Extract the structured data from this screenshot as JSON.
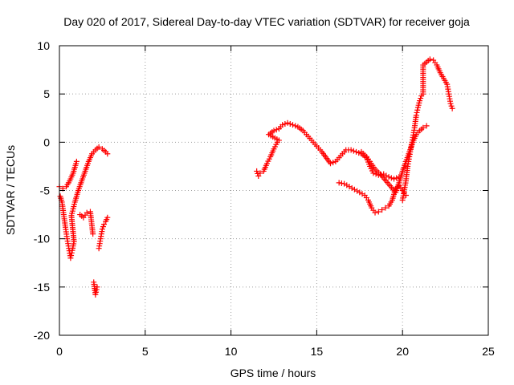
{
  "chart_data": {
    "type": "scatter",
    "title": "Day 020 of 2017, Sidereal Day-to-day VTEC variation (SDTVAR) for receiver goja",
    "xlabel": "GPS time / hours",
    "ylabel": "SDTVAR / TECUs",
    "xlim": [
      0,
      25
    ],
    "ylim": [
      -20,
      10
    ],
    "xticks": [
      0,
      5,
      10,
      15,
      20,
      25
    ],
    "yticks": [
      -20,
      -15,
      -10,
      -5,
      0,
      5,
      10
    ],
    "grid": true,
    "marker": "+",
    "color": "#ff0000",
    "series": [
      {
        "points": [
          [
            0.0,
            -4.6
          ],
          [
            0.2,
            -4.8
          ],
          [
            0.4,
            -4.6
          ],
          [
            0.6,
            -4.0
          ],
          [
            0.8,
            -3.2
          ],
          [
            1.0,
            -2.0
          ],
          [
            0.05,
            -5.6
          ],
          [
            0.15,
            -6.2
          ],
          [
            0.25,
            -7.5
          ],
          [
            0.35,
            -8.8
          ],
          [
            0.45,
            -10.0
          ],
          [
            0.55,
            -11.0
          ],
          [
            0.65,
            -12.0
          ],
          [
            0.75,
            -11.2
          ],
          [
            0.85,
            -10.3
          ],
          [
            0.7,
            -7.6
          ],
          [
            0.9,
            -6.2
          ],
          [
            1.1,
            -5.0
          ],
          [
            1.3,
            -4.0
          ],
          [
            1.5,
            -3.0
          ],
          [
            1.7,
            -2.0
          ],
          [
            1.9,
            -1.2
          ],
          [
            2.1,
            -0.8
          ],
          [
            2.3,
            -0.5
          ],
          [
            2.5,
            -0.7
          ],
          [
            2.7,
            -1.0
          ],
          [
            2.8,
            -1.2
          ],
          [
            1.2,
            -7.5
          ],
          [
            1.4,
            -7.8
          ],
          [
            1.6,
            -7.3
          ],
          [
            1.8,
            -7.2
          ],
          [
            1.95,
            -9.5
          ],
          [
            2.0,
            -14.5
          ],
          [
            2.1,
            -15.8
          ],
          [
            2.2,
            -15.0
          ],
          [
            2.3,
            -11.0
          ],
          [
            2.4,
            -10.0
          ],
          [
            2.5,
            -9.0
          ],
          [
            2.6,
            -8.5
          ],
          [
            2.7,
            -8.2
          ],
          [
            2.8,
            -7.8
          ],
          [
            11.5,
            -3.0
          ],
          [
            11.6,
            -3.5
          ],
          [
            11.7,
            -3.2
          ],
          [
            11.9,
            -3.0
          ],
          [
            12.1,
            -2.2
          ],
          [
            12.3,
            -1.5
          ],
          [
            12.5,
            -0.7
          ],
          [
            12.7,
            0.0
          ],
          [
            12.8,
            0.2
          ],
          [
            12.2,
            0.8
          ],
          [
            12.5,
            1.2
          ],
          [
            12.8,
            1.4
          ],
          [
            13.0,
            1.8
          ],
          [
            13.3,
            2.0
          ],
          [
            13.6,
            1.8
          ],
          [
            13.9,
            1.6
          ],
          [
            14.2,
            1.2
          ],
          [
            14.5,
            0.6
          ],
          [
            14.8,
            0.0
          ],
          [
            15.1,
            -0.6
          ],
          [
            15.3,
            -1.0
          ],
          [
            15.8,
            -2.2
          ],
          [
            16.1,
            -2.0
          ],
          [
            16.4,
            -1.4
          ],
          [
            16.7,
            -0.8
          ],
          [
            17.0,
            -0.8
          ],
          [
            17.3,
            -1.0
          ],
          [
            17.6,
            -1.2
          ],
          [
            17.9,
            -1.6
          ],
          [
            18.1,
            -2.5
          ],
          [
            18.3,
            -3.2
          ],
          [
            18.6,
            -3.4
          ],
          [
            18.9,
            -3.3
          ],
          [
            19.2,
            -3.6
          ],
          [
            19.5,
            -3.8
          ],
          [
            19.8,
            -3.6
          ],
          [
            16.3,
            -4.2
          ],
          [
            16.6,
            -4.3
          ],
          [
            16.9,
            -4.6
          ],
          [
            17.2,
            -4.9
          ],
          [
            17.5,
            -5.2
          ],
          [
            17.8,
            -5.5
          ],
          [
            18.0,
            -6.0
          ],
          [
            18.2,
            -6.8
          ],
          [
            18.4,
            -7.3
          ],
          [
            18.6,
            -7.2
          ],
          [
            18.8,
            -7.0
          ],
          [
            19.0,
            -6.8
          ],
          [
            19.2,
            -6.6
          ],
          [
            19.4,
            -6.0
          ],
          [
            19.6,
            -4.8
          ],
          [
            19.8,
            -4.5
          ],
          [
            20.0,
            -5.0
          ],
          [
            20.2,
            -5.5
          ],
          [
            17.6,
            -1.0
          ],
          [
            17.9,
            -1.5
          ],
          [
            18.1,
            -2.0
          ],
          [
            18.4,
            -2.8
          ],
          [
            18.7,
            -3.3
          ],
          [
            19.6,
            -5.2
          ],
          [
            19.8,
            -4.2
          ],
          [
            20.0,
            -3.0
          ],
          [
            20.2,
            -2.0
          ],
          [
            20.4,
            -1.0
          ],
          [
            20.6,
            0.0
          ],
          [
            20.8,
            0.8
          ],
          [
            21.0,
            1.2
          ],
          [
            21.2,
            1.5
          ],
          [
            21.4,
            1.7
          ],
          [
            20.0,
            -6.0
          ],
          [
            20.2,
            -4.0
          ],
          [
            20.3,
            -2.5
          ],
          [
            20.4,
            -1.5
          ],
          [
            20.5,
            -0.5
          ],
          [
            20.6,
            0.5
          ],
          [
            20.7,
            1.5
          ],
          [
            20.8,
            2.8
          ],
          [
            20.9,
            3.6
          ],
          [
            21.0,
            4.3
          ],
          [
            21.1,
            4.8
          ],
          [
            21.2,
            5.0
          ],
          [
            21.2,
            8.0
          ],
          [
            21.4,
            8.3
          ],
          [
            21.6,
            8.6
          ],
          [
            21.8,
            8.5
          ],
          [
            22.0,
            8.0
          ],
          [
            22.2,
            7.2
          ],
          [
            22.4,
            6.6
          ],
          [
            22.6,
            6.0
          ],
          [
            22.7,
            5.0
          ],
          [
            22.8,
            4.0
          ],
          [
            22.9,
            3.5
          ]
        ]
      }
    ]
  }
}
